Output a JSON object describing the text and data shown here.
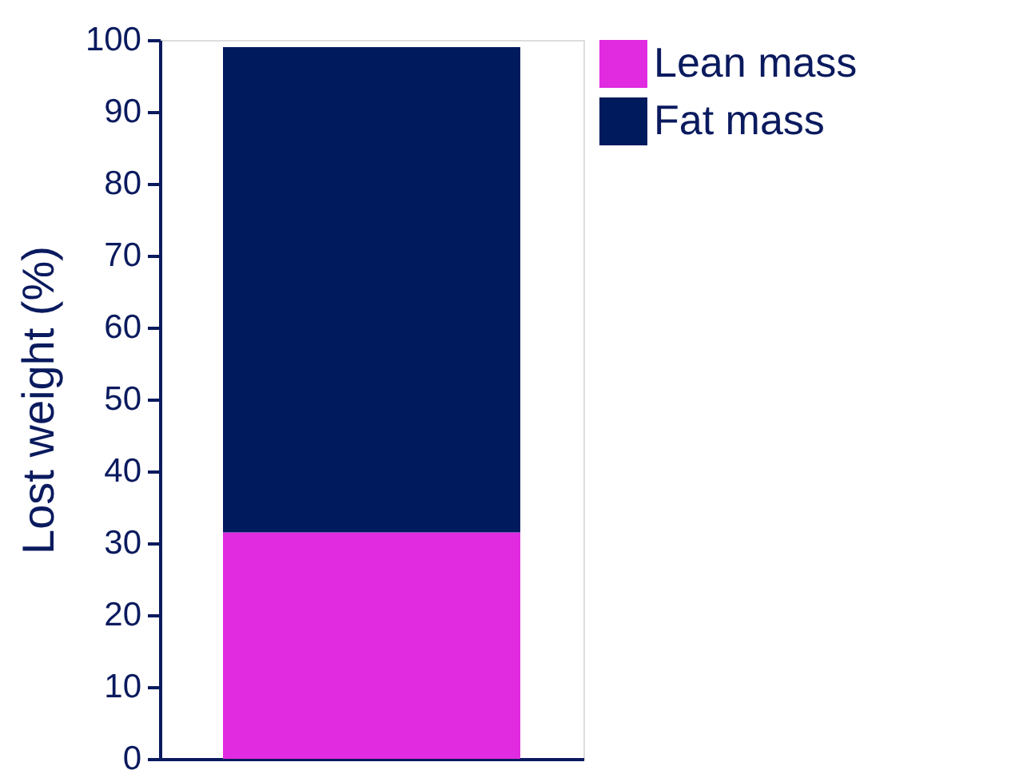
{
  "chart_data": {
    "type": "bar",
    "stacked": true,
    "ylabel": "Lost weight (%)",
    "categories": [
      null
    ],
    "series": [
      {
        "name": "Lean mass",
        "color": "#e02be0",
        "values": [
          31.5
        ]
      },
      {
        "name": "Fat mass",
        "color": "#001a5e",
        "values": [
          67.5
        ]
      }
    ],
    "ylim": [
      0,
      100
    ],
    "yticks": [
      0,
      10,
      20,
      30,
      40,
      50,
      60,
      70,
      80,
      90,
      100
    ],
    "grid": false,
    "legend": "top right"
  }
}
